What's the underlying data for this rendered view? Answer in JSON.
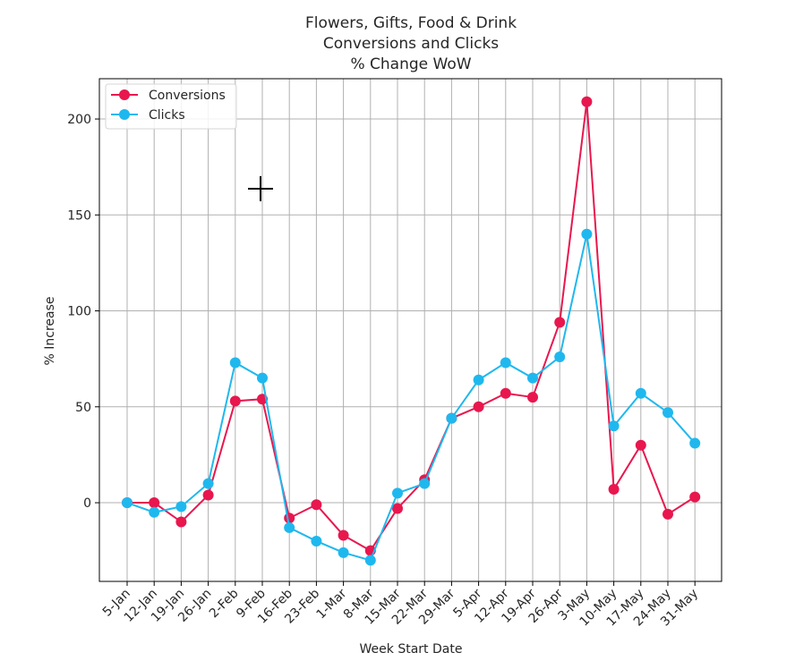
{
  "chart_data": {
    "type": "line",
    "title": [
      "Flowers, Gifts, Food & Drink",
      "Conversions and Clicks",
      "% Change WoW"
    ],
    "xlabel": "Week Start Date",
    "ylabel": "% Increase",
    "categories": [
      "5-Jan",
      "12-Jan",
      "19-Jan",
      "26-Jan",
      "2-Feb",
      "9-Feb",
      "16-Feb",
      "23-Feb",
      "1-Mar",
      "8-Mar",
      "15-Mar",
      "22-Mar",
      "29-Mar",
      "5-Apr",
      "12-Apr",
      "19-Apr",
      "26-Apr",
      "3-May",
      "10-May",
      "17-May",
      "24-May",
      "31-May"
    ],
    "yticks": [
      0,
      50,
      100,
      150,
      200
    ],
    "ylim": [
      -41,
      221
    ],
    "grid": true,
    "legend_position": "top-left",
    "series": [
      {
        "name": "Conversions",
        "color": "#e8174e",
        "values": [
          0,
          0,
          -10,
          4,
          53,
          54,
          -8,
          -1,
          -17,
          -25,
          -3,
          12,
          44,
          50,
          57,
          55,
          94,
          209,
          7,
          30,
          -6,
          3
        ]
      },
      {
        "name": "Clicks",
        "color": "#1fb8ee",
        "values": [
          0,
          -5,
          -2,
          10,
          73,
          65,
          -13,
          -20,
          -26,
          -30,
          5,
          10,
          44,
          64,
          73,
          65,
          76,
          140,
          40,
          57,
          47,
          31
        ]
      }
    ]
  }
}
